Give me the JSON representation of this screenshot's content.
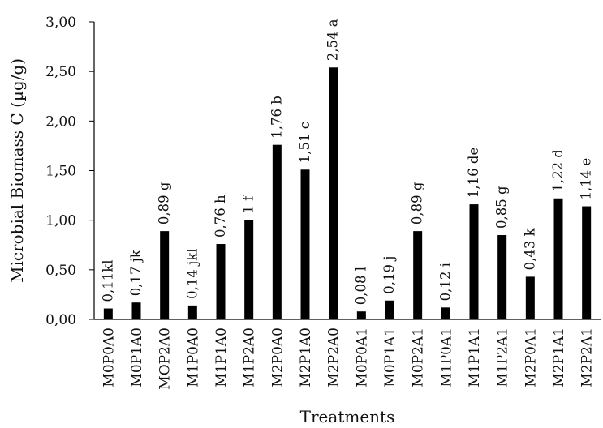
{
  "chart_data": {
    "type": "bar",
    "categories": [
      "M0P0A0",
      "M0P1A0",
      "MOP2A0",
      "M1P0A0",
      "M1P1A0",
      "M1P2A0",
      "M2P0A0",
      "M2P1A0",
      "M2P2A0",
      "M0P0A1",
      "M0P1A1",
      "M0P2A1",
      "M1P0A1",
      "M1P1A1",
      "M1P2A1",
      "M2P0A1",
      "M2P1A1",
      "M2P2A1"
    ],
    "values": [
      0.11,
      0.17,
      0.89,
      0.14,
      0.76,
      1.0,
      1.76,
      1.51,
      2.54,
      0.08,
      0.19,
      0.89,
      0.12,
      1.16,
      0.85,
      0.43,
      1.22,
      1.14
    ],
    "data_labels": [
      "0,11kl",
      "0,17 jk",
      "0,89 g",
      "0,14 jkl",
      "0,76 h",
      "1 f",
      "1,76 b",
      "1,51 c",
      "2,54 a",
      "0,08 l",
      "0,19 j",
      "0,89 g",
      "0,12 i",
      "1,16 de",
      "0,85 g",
      "0,43 k",
      "1,22 d",
      "1,14 e"
    ],
    "xlabel": "Treatments",
    "ylabel": "Microbial Biomass C (µg/g)",
    "ylim": [
      0,
      3
    ],
    "yticks": [
      "0,00",
      "0,50",
      "1,00",
      "1,50",
      "2,00",
      "2,50",
      "3,00"
    ],
    "grid": false,
    "bar_color": "#000000"
  }
}
